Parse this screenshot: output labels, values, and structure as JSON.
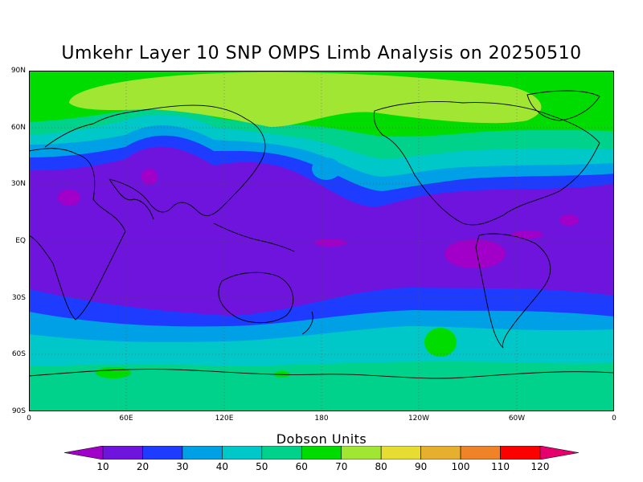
{
  "title": "Umkehr Layer 10 SNP OMPS Limb Analysis on 20250510",
  "colorbar": {
    "title": "Dobson Units",
    "ticks": [
      "10",
      "20",
      "30",
      "40",
      "50",
      "60",
      "70",
      "80",
      "90",
      "100",
      "110",
      "120"
    ],
    "colors": [
      "#a000c8",
      "#6e14dc",
      "#1e3cff",
      "#00a0e6",
      "#00c8c8",
      "#00d28c",
      "#00dc00",
      "#a0e632",
      "#e6dc32",
      "#e6af2d",
      "#f08228",
      "#fa0000",
      "#e6006e"
    ]
  },
  "axes": {
    "lat_labels": [
      "90N",
      "60N",
      "30N",
      "EQ",
      "30S",
      "60S",
      "90S"
    ],
    "lon_labels": [
      "0",
      "60E",
      "120E",
      "180",
      "120W",
      "60W",
      "0"
    ]
  },
  "chart_data": {
    "type": "heatmap",
    "title": "Umkehr Layer 10 SNP OMPS Limb Analysis on 20250510",
    "legend_title": "Dobson Units",
    "units": "Dobson Units",
    "xlim": [
      0,
      360
    ],
    "ylim": [
      -90,
      90
    ],
    "grid": true,
    "zonal_bands_DU": [
      {
        "lat": [
          75,
          90
        ],
        "value": 70
      },
      {
        "lat": [
          58,
          75
        ],
        "value": 80
      },
      {
        "lat": [
          50,
          58
        ],
        "value": 70
      },
      {
        "lat": [
          44,
          50
        ],
        "value": 60
      },
      {
        "lat": [
          38,
          44
        ],
        "value": 50
      },
      {
        "lat": [
          30,
          38
        ],
        "value": 40
      },
      {
        "lat": [
          23,
          30
        ],
        "value": 30
      },
      {
        "lat": [
          -28,
          23
        ],
        "value": 20
      },
      {
        "lat": [
          -40,
          -28
        ],
        "value": 30
      },
      {
        "lat": [
          -50,
          -40
        ],
        "value": 40
      },
      {
        "lat": [
          -62,
          -50
        ],
        "value": 50
      },
      {
        "lat": [
          -90,
          -62
        ],
        "value": 60
      }
    ]
  }
}
